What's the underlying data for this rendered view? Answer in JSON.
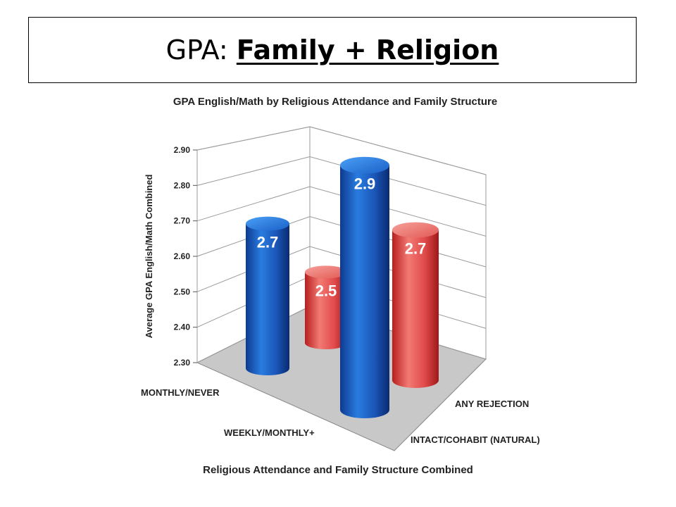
{
  "slide": {
    "title_prefix": "GPA: ",
    "title_emphasis": "Family + Religion"
  },
  "chart_data": {
    "type": "bar",
    "title": "GPA English/Math by Religious Attendance and Family Structure",
    "xlabel": "Religious Attendance and Family Structure Combined",
    "ylabel": "Average GPA English/Math Combined",
    "ylim": [
      2.3,
      2.9
    ],
    "yticks": [
      "2.90",
      "2.80",
      "2.70",
      "2.60",
      "2.50",
      "2.40",
      "2.30"
    ],
    "categories": [
      "MONTHLY/NEVER",
      "WEEKLY/MONTHLY+"
    ],
    "series": [
      {
        "name": "INTACT/COHABIT (NATURAL)",
        "color": "#1f5fc8",
        "values": [
          2.7,
          2.9
        ],
        "labels": [
          "2.7",
          "2.9"
        ]
      },
      {
        "name": "ANY REJECTION",
        "color": "#e04a4a",
        "values": [
          2.5,
          2.7
        ],
        "labels": [
          "2.5",
          "2.7"
        ]
      }
    ],
    "grid": true
  }
}
